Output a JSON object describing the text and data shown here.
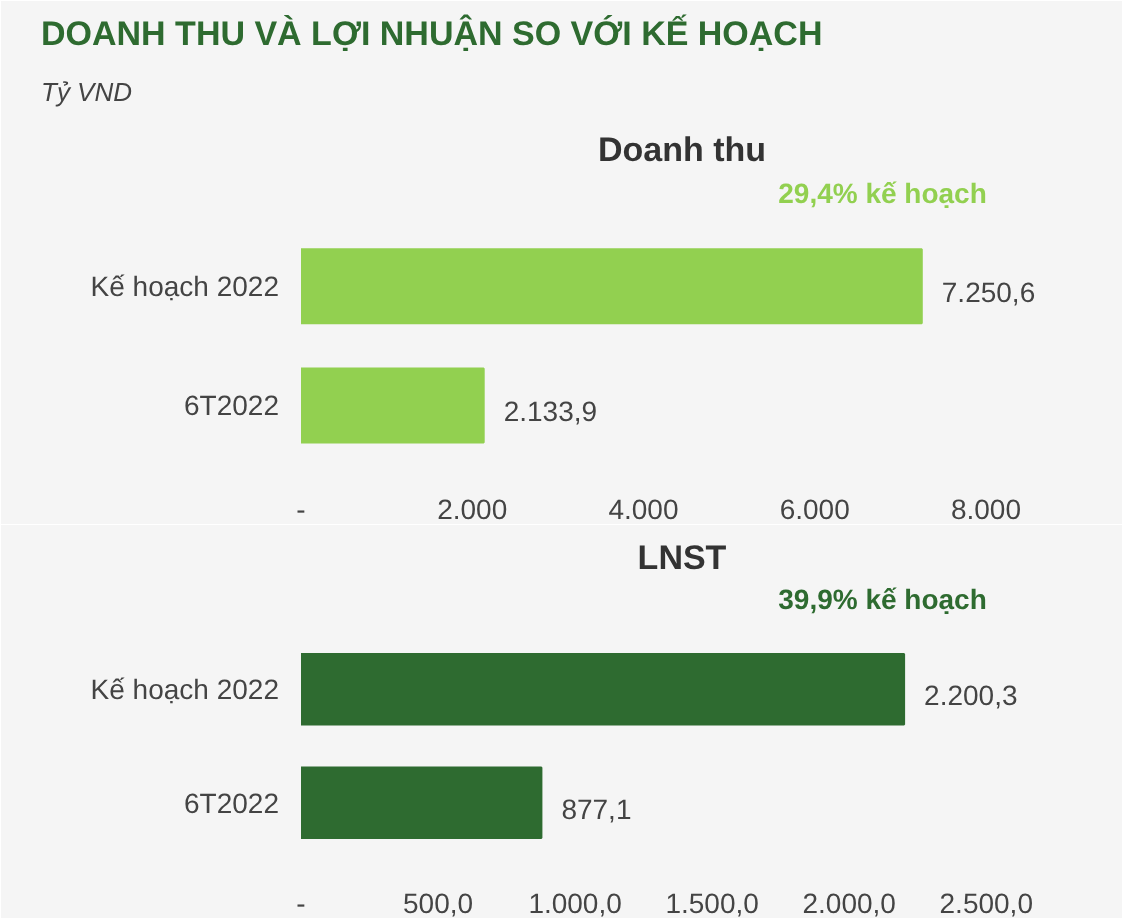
{
  "chart_data": [
    {
      "type": "bar",
      "orientation": "horizontal",
      "title": "Doanh thu",
      "annotations": [
        "DOANH THU VÀ LỢI NHUẬN SO VỚI KẾ HOẠCH",
        "Tỷ VND",
        "29,4% kế hoạch"
      ],
      "categories": [
        "Kế hoạch 2022",
        "6T2022"
      ],
      "values": [
        7250.6,
        2133.9
      ],
      "color": "#92d050",
      "value_labels": [
        "7.250,6",
        "2.133,9"
      ],
      "xlim": [
        0,
        8900
      ],
      "xticks": [
        {
          "value": 0,
          "label": "-"
        },
        {
          "value": 2000,
          "label": "2.000"
        },
        {
          "value": 4000,
          "label": "4.000"
        },
        {
          "value": 6000,
          "label": "6.000"
        },
        {
          "value": 8000,
          "label": "8.000"
        }
      ],
      "grid": false
    },
    {
      "type": "bar",
      "orientation": "horizontal",
      "title": "LNST",
      "annotations": [
        "39,9% kế hoạch"
      ],
      "categories": [
        "Kế hoạch 2022",
        "6T2022"
      ],
      "values": [
        2200.3,
        877.1
      ],
      "color": "#2e6b30",
      "value_labels": [
        "2.200,3",
        "877,1"
      ],
      "xlim": [
        0,
        2780
      ],
      "xticks": [
        {
          "value": 0,
          "label": "-"
        },
        {
          "value": 500,
          "label": "500,0"
        },
        {
          "value": 1000,
          "label": "1.000,0"
        },
        {
          "value": 1500,
          "label": "1.500,0"
        },
        {
          "value": 2000,
          "label": "2.000,0"
        },
        {
          "value": 2500,
          "label": "2.500,0"
        }
      ],
      "grid": false
    }
  ]
}
